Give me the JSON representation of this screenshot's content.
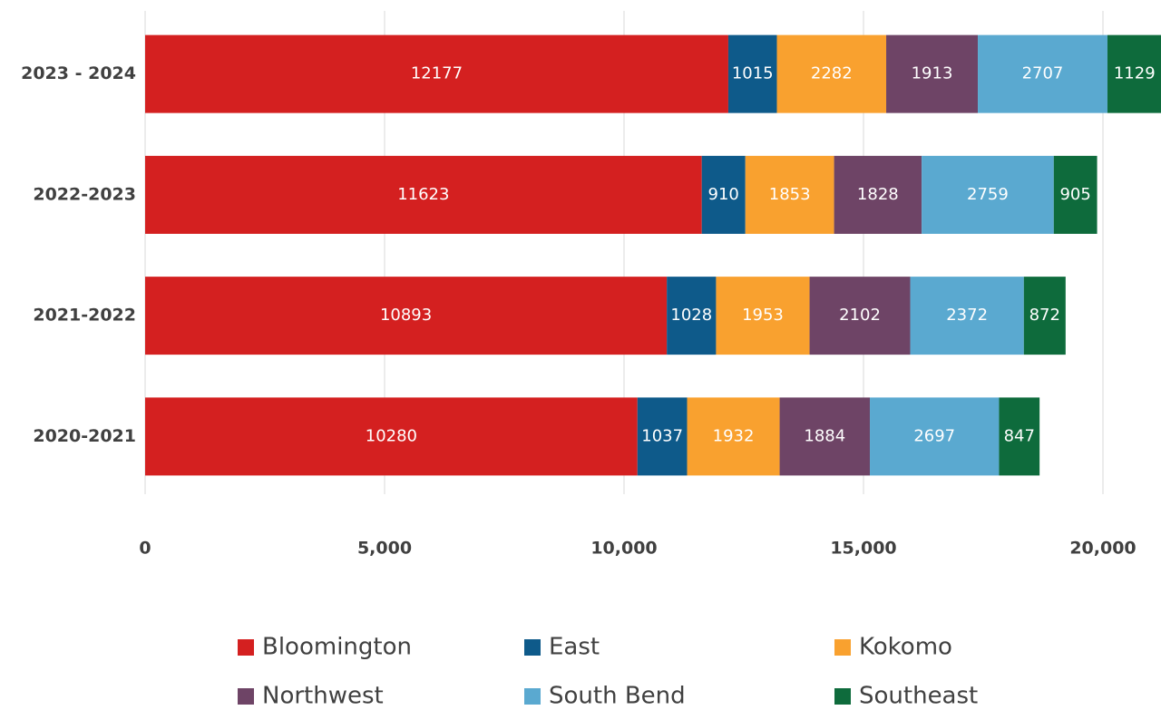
{
  "chart_data": {
    "type": "stacked-bar-horizontal",
    "categories": [
      "2023 - 2024",
      "2022-2023",
      "2021-2022",
      "2020-2021"
    ],
    "series": [
      {
        "name": "Bloomington",
        "color": "#d42020",
        "values": [
          12177,
          11623,
          10893,
          10280
        ]
      },
      {
        "name": "East",
        "color": "#0e5a8a",
        "values": [
          1015,
          910,
          1028,
          1037
        ]
      },
      {
        "name": "Kokomo",
        "color": "#f9a12f",
        "values": [
          2282,
          1853,
          1953,
          1932
        ]
      },
      {
        "name": "Northwest",
        "color": "#6e4466",
        "values": [
          1913,
          1828,
          2102,
          1884
        ]
      },
      {
        "name": "South Bend",
        "color": "#5aa9d0",
        "values": [
          2707,
          2759,
          2372,
          2697
        ]
      },
      {
        "name": "Southeast",
        "color": "#0e6b3c",
        "values": [
          1129,
          905,
          872,
          847
        ]
      }
    ],
    "xlim": [
      0,
      21250
    ],
    "xticks": [
      0,
      {
        "value": 5000,
        "label": "5,000"
      },
      {
        "value": 10000,
        "label": "10,000"
      },
      {
        "value": 15000,
        "label": "15,000"
      },
      {
        "value": 20000,
        "label": "20,000"
      }
    ],
    "grid": true,
    "legend": "bottom"
  }
}
